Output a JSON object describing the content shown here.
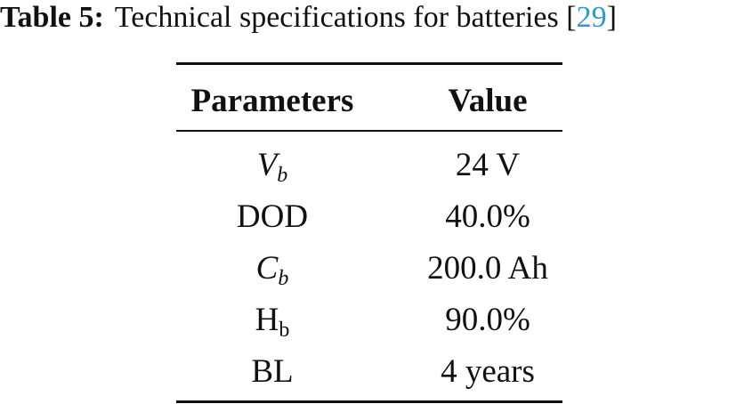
{
  "caption": {
    "label": "Table 5:",
    "text": "Technical specifications for batteries",
    "citation": {
      "open": "[",
      "ref": "29",
      "close": "]"
    }
  },
  "table": {
    "header": [
      "Parameters",
      "Value"
    ],
    "rows": [
      {
        "param": {
          "base": "V",
          "sub": "b"
        },
        "value": "24 V"
      },
      {
        "param": {
          "base": "DOD"
        },
        "value": "40.0%"
      },
      {
        "param": {
          "base": "C",
          "sub": "b"
        },
        "value": "200.0 Ah"
      },
      {
        "param": {
          "base": "H",
          "sub": "b"
        },
        "value": "90.0%"
      },
      {
        "param": {
          "base": "BL"
        },
        "value": "4 years"
      }
    ]
  }
}
